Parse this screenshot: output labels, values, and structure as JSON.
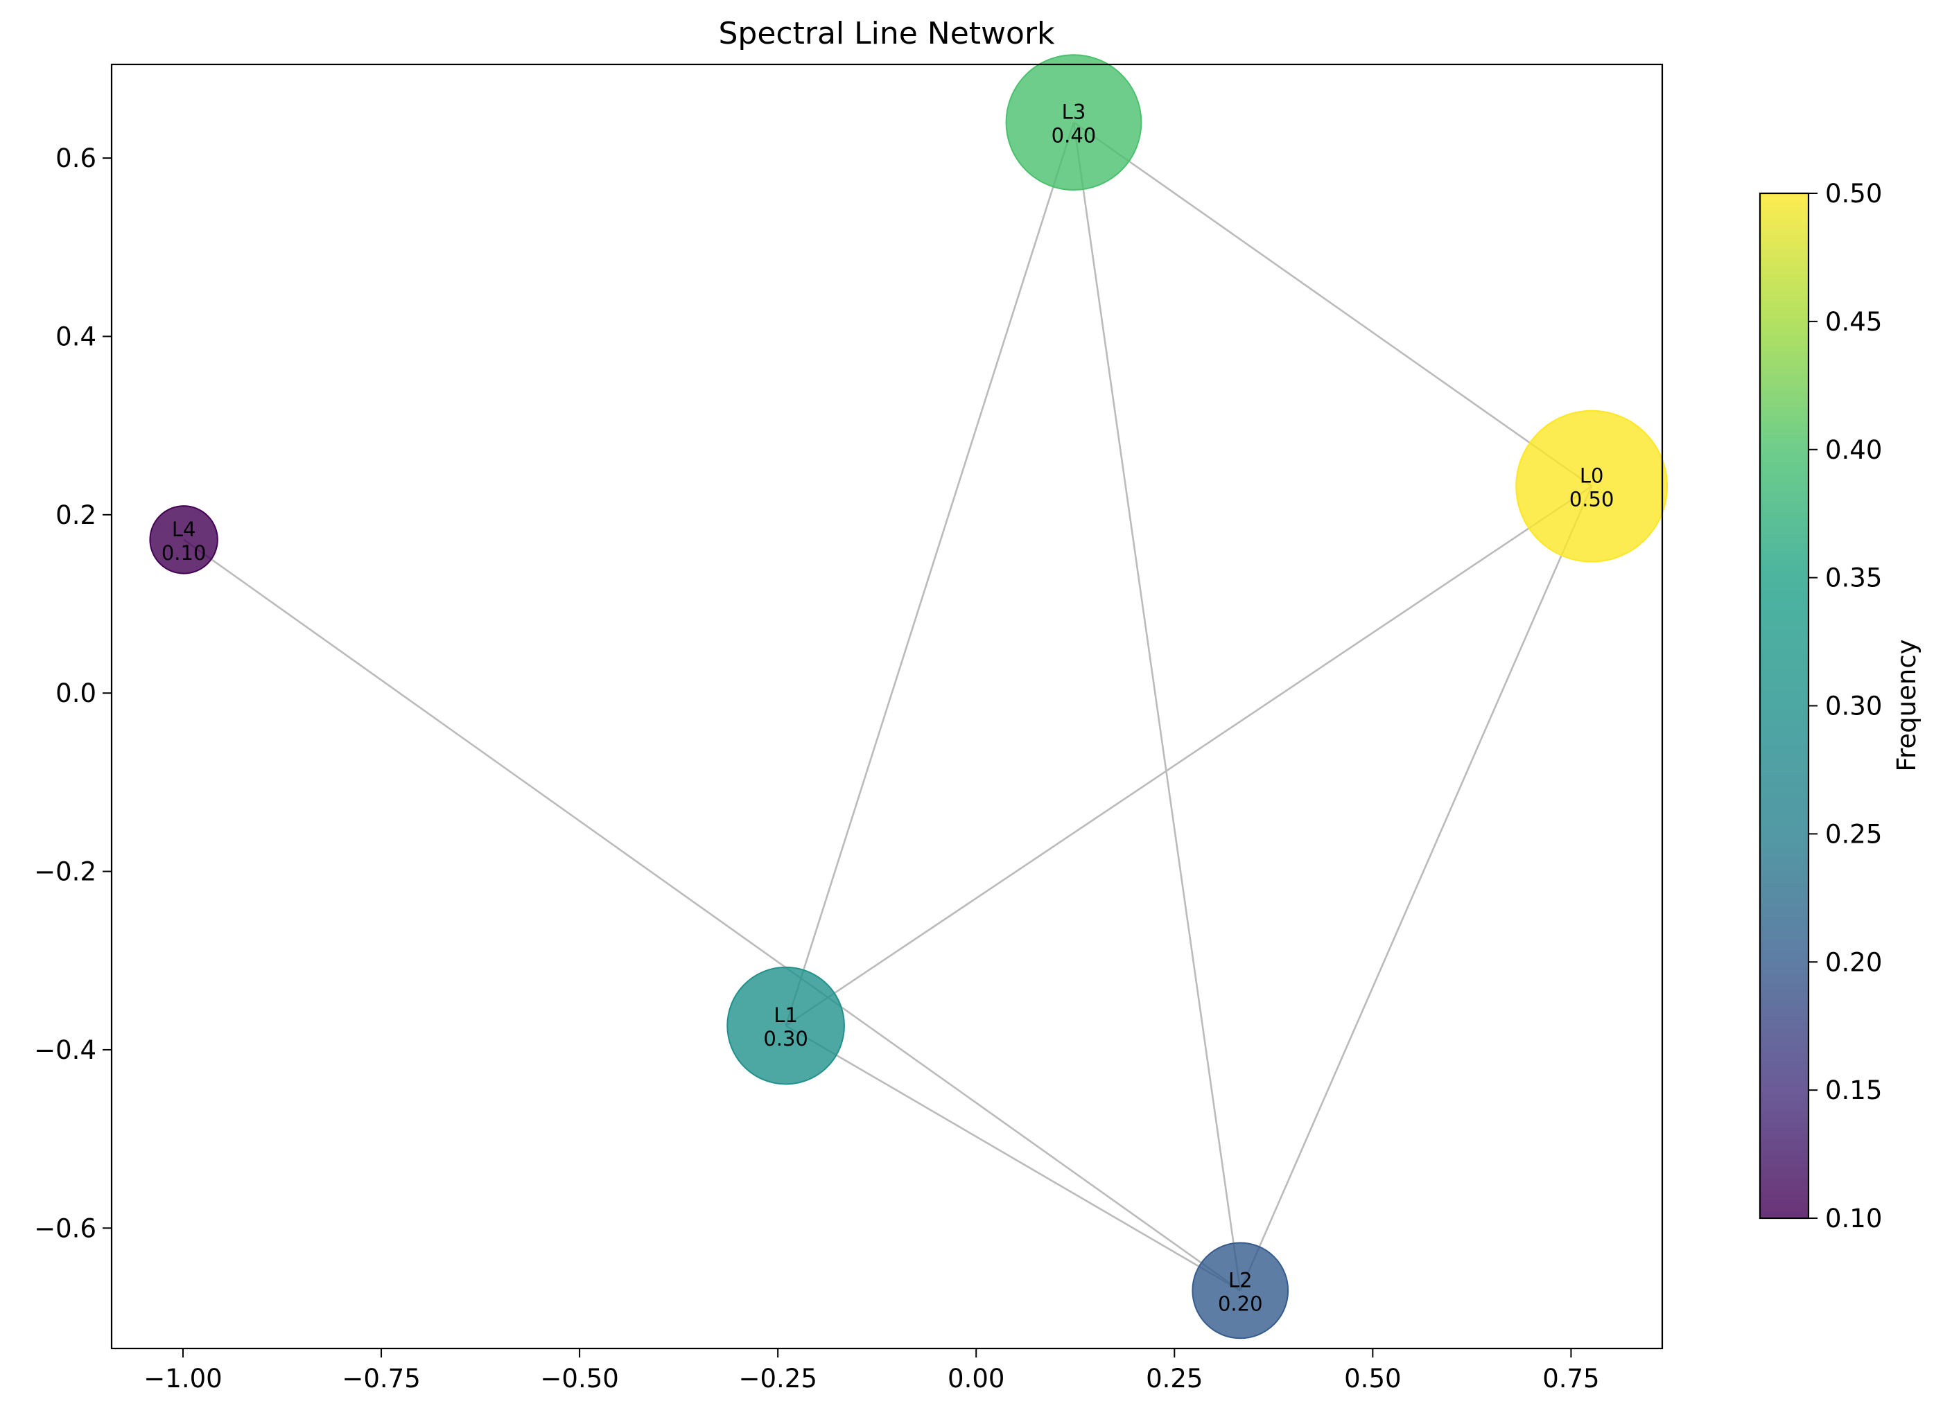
{
  "chart_data": {
    "type": "network",
    "title": "Spectral Line Network",
    "xlim": [
      -1.09,
      0.865
    ],
    "ylim": [
      -0.735,
      0.705
    ],
    "x_ticks": [
      -1.0,
      -0.75,
      -0.5,
      -0.25,
      0.0,
      0.25,
      0.5,
      0.75
    ],
    "x_tick_labels": [
      "−1.00",
      "−0.75",
      "−0.50",
      "−0.25",
      "0.00",
      "0.25",
      "0.50",
      "0.75"
    ],
    "y_ticks": [
      0.6,
      0.4,
      0.2,
      0.0,
      -0.2,
      -0.4,
      -0.6
    ],
    "y_tick_labels": [
      "0.6",
      "0.4",
      "0.2",
      "0.0",
      "−0.2",
      "−0.4",
      "−0.6"
    ],
    "nodes": [
      {
        "id": "L0",
        "freq_label": "0.50",
        "x": 0.776,
        "y": 0.232,
        "frequency": 0.5
      },
      {
        "id": "L1",
        "freq_label": "0.30",
        "x": -0.24,
        "y": -0.373,
        "frequency": 0.3
      },
      {
        "id": "L2",
        "freq_label": "0.20",
        "x": 0.333,
        "y": -0.67,
        "frequency": 0.2
      },
      {
        "id": "L3",
        "freq_label": "0.40",
        "x": 0.123,
        "y": 0.64,
        "frequency": 0.4
      },
      {
        "id": "L4",
        "freq_label": "0.10",
        "x": -0.999,
        "y": 0.172,
        "frequency": 0.1
      }
    ],
    "edges": [
      [
        "L3",
        "L0"
      ],
      [
        "L3",
        "L1"
      ],
      [
        "L3",
        "L2"
      ],
      [
        "L0",
        "L1"
      ],
      [
        "L0",
        "L2"
      ],
      [
        "L1",
        "L2"
      ],
      [
        "L4",
        "L2"
      ]
    ],
    "colorbar": {
      "label": "Frequency",
      "colormap": "viridis",
      "range": [
        0.1,
        0.5
      ],
      "ticks": [
        0.5,
        0.45,
        0.4,
        0.35,
        0.3,
        0.25,
        0.2,
        0.15,
        0.1
      ],
      "tick_labels": [
        "0.50",
        "0.45",
        "0.40",
        "0.35",
        "0.30",
        "0.25",
        "0.20",
        "0.15",
        "0.10"
      ]
    },
    "edge_color": "#bbbbbb",
    "node_alpha": 0.8,
    "grid": false
  }
}
